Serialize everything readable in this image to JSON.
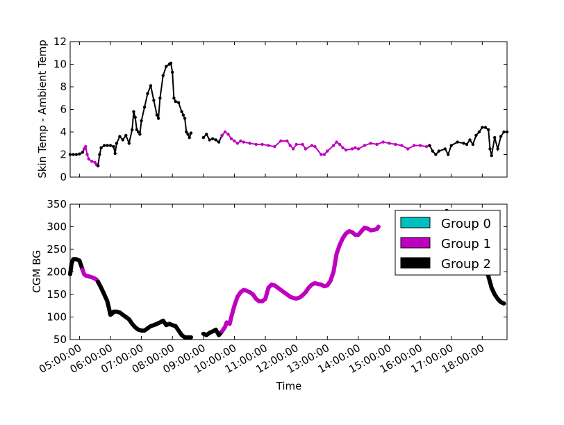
{
  "chart_data": [
    {
      "type": "scatter",
      "panel": "top",
      "ylabel": "Skin Temp - Ambient Temp",
      "xlabel": "",
      "ylim": [
        0,
        12
      ],
      "yticks": [
        "0",
        "2",
        "4",
        "6",
        "8",
        "10",
        "12"
      ],
      "xlim_hours": [
        4.7,
        18.8
      ],
      "grid": false,
      "series": [
        {
          "group": 2,
          "color": "#000000",
          "points": [
            [
              4.7,
              2.0
            ],
            [
              4.8,
              2.0
            ],
            [
              4.9,
              2.0
            ],
            [
              5.0,
              2.05
            ],
            [
              5.1,
              2.2
            ],
            [
              5.15,
              2.5
            ]
          ]
        },
        {
          "group": 1,
          "color": "#bf00bf",
          "points": [
            [
              5.15,
              2.5
            ],
            [
              5.2,
              2.7
            ],
            [
              5.25,
              2.0
            ],
            [
              5.3,
              1.6
            ],
            [
              5.4,
              1.4
            ],
            [
              5.5,
              1.3
            ],
            [
              5.55,
              1.1
            ],
            [
              5.6,
              1.0
            ]
          ]
        },
        {
          "group": 2,
          "color": "#000000",
          "points": [
            [
              5.6,
              1.0
            ],
            [
              5.65,
              2.0
            ],
            [
              5.7,
              2.6
            ],
            [
              5.8,
              2.8
            ],
            [
              5.9,
              2.8
            ],
            [
              6.0,
              2.8
            ],
            [
              6.1,
              2.7
            ],
            [
              6.15,
              2.1
            ],
            [
              6.2,
              3.0
            ],
            [
              6.3,
              3.6
            ],
            [
              6.4,
              3.3
            ],
            [
              6.5,
              3.7
            ],
            [
              6.6,
              3.0
            ],
            [
              6.7,
              4.2
            ],
            [
              6.75,
              5.8
            ],
            [
              6.8,
              5.3
            ],
            [
              6.85,
              4.2
            ],
            [
              6.9,
              4.0
            ],
            [
              6.95,
              3.8
            ],
            [
              7.0,
              5.0
            ],
            [
              7.1,
              6.2
            ],
            [
              7.2,
              7.4
            ],
            [
              7.3,
              8.1
            ],
            [
              7.4,
              6.8
            ],
            [
              7.5,
              5.5
            ],
            [
              7.55,
              5.2
            ],
            [
              7.6,
              7.0
            ],
            [
              7.7,
              9.0
            ],
            [
              7.8,
              9.8
            ],
            [
              7.9,
              10.0
            ],
            [
              7.95,
              10.1
            ],
            [
              8.0,
              9.3
            ],
            [
              8.05,
              7.0
            ],
            [
              8.1,
              6.7
            ],
            [
              8.2,
              6.6
            ],
            [
              8.3,
              5.8
            ],
            [
              8.35,
              5.5
            ],
            [
              8.4,
              5.2
            ],
            [
              8.45,
              4.0
            ],
            [
              8.5,
              3.8
            ],
            [
              8.55,
              3.5
            ],
            [
              8.6,
              3.9
            ]
          ]
        },
        {
          "group": 2,
          "color": "#000000",
          "points": [
            [
              9.0,
              3.5
            ],
            [
              9.1,
              3.8
            ],
            [
              9.2,
              3.3
            ],
            [
              9.3,
              3.4
            ],
            [
              9.4,
              3.3
            ],
            [
              9.5,
              3.1
            ],
            [
              9.6,
              3.7
            ]
          ]
        },
        {
          "group": 1,
          "color": "#bf00bf",
          "points": [
            [
              9.6,
              3.7
            ],
            [
              9.7,
              4.0
            ],
            [
              9.8,
              3.8
            ],
            [
              9.9,
              3.4
            ],
            [
              10.0,
              3.2
            ],
            [
              10.1,
              3.0
            ],
            [
              10.2,
              3.2
            ],
            [
              10.3,
              3.1
            ],
            [
              10.5,
              3.0
            ],
            [
              10.7,
              2.9
            ],
            [
              10.9,
              2.9
            ],
            [
              11.1,
              2.8
            ],
            [
              11.3,
              2.7
            ],
            [
              11.5,
              3.2
            ],
            [
              11.7,
              3.2
            ],
            [
              11.8,
              2.8
            ],
            [
              11.9,
              2.5
            ],
            [
              12.0,
              2.9
            ],
            [
              12.2,
              2.9
            ],
            [
              12.3,
              2.5
            ],
            [
              12.5,
              2.8
            ],
            [
              12.6,
              2.7
            ],
            [
              12.8,
              2.0
            ],
            [
              12.9,
              2.0
            ],
            [
              13.0,
              2.3
            ],
            [
              13.2,
              2.8
            ],
            [
              13.3,
              3.1
            ],
            [
              13.4,
              2.9
            ],
            [
              13.5,
              2.6
            ],
            [
              13.6,
              2.4
            ],
            [
              13.8,
              2.5
            ],
            [
              13.9,
              2.6
            ],
            [
              14.0,
              2.5
            ],
            [
              14.2,
              2.8
            ],
            [
              14.4,
              3.0
            ],
            [
              14.6,
              2.9
            ],
            [
              14.8,
              3.1
            ],
            [
              15.0,
              3.0
            ],
            [
              15.2,
              2.9
            ],
            [
              15.4,
              2.8
            ],
            [
              15.6,
              2.5
            ],
            [
              15.8,
              2.8
            ],
            [
              16.0,
              2.8
            ],
            [
              16.2,
              2.7
            ],
            [
              16.3,
              2.8
            ]
          ]
        },
        {
          "group": 2,
          "color": "#000000",
          "points": [
            [
              16.3,
              2.8
            ],
            [
              16.4,
              2.3
            ],
            [
              16.5,
              2.0
            ],
            [
              16.6,
              2.3
            ],
            [
              16.8,
              2.5
            ],
            [
              16.9,
              2.0
            ],
            [
              17.0,
              2.8
            ],
            [
              17.2,
              3.1
            ],
            [
              17.4,
              3.0
            ],
            [
              17.5,
              2.9
            ],
            [
              17.6,
              3.3
            ],
            [
              17.7,
              2.9
            ],
            [
              17.8,
              3.7
            ],
            [
              17.9,
              4.0
            ],
            [
              18.0,
              4.4
            ],
            [
              18.1,
              4.4
            ],
            [
              18.2,
              4.2
            ],
            [
              18.25,
              2.5
            ],
            [
              18.3,
              1.9
            ],
            [
              18.4,
              3.5
            ],
            [
              18.5,
              2.5
            ],
            [
              18.6,
              3.6
            ],
            [
              18.7,
              4.0
            ],
            [
              18.8,
              4.0
            ]
          ]
        }
      ]
    },
    {
      "type": "line",
      "panel": "bottom",
      "ylabel": "CGM BG",
      "xlabel": "Time",
      "ylim": [
        50,
        350
      ],
      "yticks": [
        "50",
        "100",
        "150",
        "200",
        "250",
        "300",
        "350"
      ],
      "xlim_hours": [
        4.7,
        18.8
      ],
      "xtick_hours": [
        5,
        6,
        7,
        8,
        9,
        10,
        11,
        12,
        13,
        14,
        15,
        16,
        17,
        18
      ],
      "xtick_labels": [
        "05:00:00",
        "06:00:00",
        "07:00:00",
        "08:00:00",
        "09:00:00",
        "10:00:00",
        "11:00:00",
        "12:00:00",
        "13:00:00",
        "14:00:00",
        "15:00:00",
        "16:00:00",
        "17:00:00",
        "18:00:00"
      ],
      "grid": false,
      "legend": {
        "placement": "top-right",
        "entries": [
          {
            "label": "Group 0",
            "color": "#00bfbf"
          },
          {
            "label": "Group 1",
            "color": "#bf00bf"
          },
          {
            "label": "Group 2",
            "color": "#000000"
          }
        ]
      },
      "series": [
        {
          "group": 2,
          "color": "#000000",
          "points": [
            [
              4.7,
              195
            ],
            [
              4.75,
              220
            ],
            [
              4.8,
              228
            ],
            [
              4.9,
              228
            ],
            [
              5.0,
              225
            ],
            [
              5.05,
              215
            ],
            [
              5.1,
              205
            ]
          ]
        },
        {
          "group": 1,
          "color": "#bf00bf",
          "points": [
            [
              5.1,
              205
            ],
            [
              5.15,
              195
            ],
            [
              5.2,
              192
            ],
            [
              5.3,
              190
            ],
            [
              5.4,
              188
            ],
            [
              5.5,
              185
            ],
            [
              5.55,
              183
            ],
            [
              5.6,
              178
            ]
          ]
        },
        {
          "group": 2,
          "color": "#000000",
          "points": [
            [
              5.6,
              178
            ],
            [
              5.7,
              165
            ],
            [
              5.8,
              150
            ],
            [
              5.9,
              135
            ],
            [
              5.95,
              120
            ],
            [
              6.0,
              105
            ],
            [
              6.05,
              107
            ],
            [
              6.1,
              112
            ],
            [
              6.2,
              112
            ],
            [
              6.3,
              110
            ],
            [
              6.4,
              105
            ],
            [
              6.5,
              100
            ],
            [
              6.6,
              95
            ],
            [
              6.7,
              85
            ],
            [
              6.8,
              77
            ],
            [
              6.9,
              72
            ],
            [
              7.0,
              70
            ],
            [
              7.1,
              70
            ],
            [
              7.2,
              75
            ],
            [
              7.3,
              80
            ],
            [
              7.4,
              82
            ],
            [
              7.5,
              85
            ],
            [
              7.6,
              88
            ],
            [
              7.7,
              92
            ],
            [
              7.8,
              82
            ],
            [
              7.9,
              85
            ],
            [
              8.0,
              82
            ],
            [
              8.1,
              80
            ],
            [
              8.2,
              70
            ],
            [
              8.3,
              60
            ],
            [
              8.4,
              55
            ],
            [
              8.5,
              55
            ],
            [
              8.6,
              55
            ]
          ]
        },
        {
          "group": 2,
          "color": "#000000",
          "points": [
            [
              9.0,
              63
            ],
            [
              9.1,
              60
            ],
            [
              9.2,
              65
            ],
            [
              9.3,
              68
            ],
            [
              9.4,
              72
            ],
            [
              9.5,
              60
            ],
            [
              9.6,
              68
            ]
          ]
        },
        {
          "group": 1,
          "color": "#bf00bf",
          "points": [
            [
              9.6,
              68
            ],
            [
              9.7,
              78
            ],
            [
              9.75,
              88
            ],
            [
              9.85,
              85
            ],
            [
              9.9,
              100
            ],
            [
              10.0,
              125
            ],
            [
              10.1,
              145
            ],
            [
              10.2,
              155
            ],
            [
              10.3,
              160
            ],
            [
              10.4,
              158
            ],
            [
              10.5,
              155
            ],
            [
              10.6,
              150
            ],
            [
              10.7,
              140
            ],
            [
              10.8,
              135
            ],
            [
              10.9,
              135
            ],
            [
              11.0,
              140
            ],
            [
              11.1,
              165
            ],
            [
              11.2,
              172
            ],
            [
              11.3,
              170
            ],
            [
              11.4,
              165
            ],
            [
              11.5,
              160
            ],
            [
              11.6,
              155
            ],
            [
              11.7,
              150
            ],
            [
              11.8,
              145
            ],
            [
              11.9,
              142
            ],
            [
              12.0,
              141
            ],
            [
              12.1,
              143
            ],
            [
              12.2,
              148
            ],
            [
              12.3,
              155
            ],
            [
              12.4,
              165
            ],
            [
              12.5,
              172
            ],
            [
              12.6,
              175
            ],
            [
              12.7,
              173
            ],
            [
              12.8,
              172
            ],
            [
              12.9,
              168
            ],
            [
              13.0,
              170
            ],
            [
              13.1,
              180
            ],
            [
              13.2,
              200
            ],
            [
              13.3,
              240
            ],
            [
              13.4,
              260
            ],
            [
              13.5,
              275
            ],
            [
              13.6,
              285
            ],
            [
              13.7,
              290
            ],
            [
              13.8,
              288
            ],
            [
              13.9,
              282
            ],
            [
              14.0,
              282
            ],
            [
              14.1,
              290
            ],
            [
              14.2,
              298
            ],
            [
              14.3,
              296
            ],
            [
              14.4,
              292
            ],
            [
              14.5,
              293
            ],
            [
              14.6,
              295
            ]
          ]
        },
        {
          "group": 1,
          "color": "#bf00bf",
          "points": [
            [
              14.6,
              295
            ],
            [
              14.65,
              300
            ]
          ]
        },
        {
          "group": 2,
          "color": "#000000",
          "points": [
            [
              16.8,
              330
            ],
            [
              16.85,
              335
            ],
            [
              16.9,
              332
            ]
          ]
        },
        {
          "group": 2,
          "color": "#000000",
          "points": [
            [
              18.1,
              210
            ],
            [
              18.2,
              190
            ],
            [
              18.3,
              165
            ],
            [
              18.4,
              150
            ],
            [
              18.5,
              140
            ],
            [
              18.6,
              133
            ],
            [
              18.7,
              130
            ]
          ]
        }
      ]
    }
  ]
}
